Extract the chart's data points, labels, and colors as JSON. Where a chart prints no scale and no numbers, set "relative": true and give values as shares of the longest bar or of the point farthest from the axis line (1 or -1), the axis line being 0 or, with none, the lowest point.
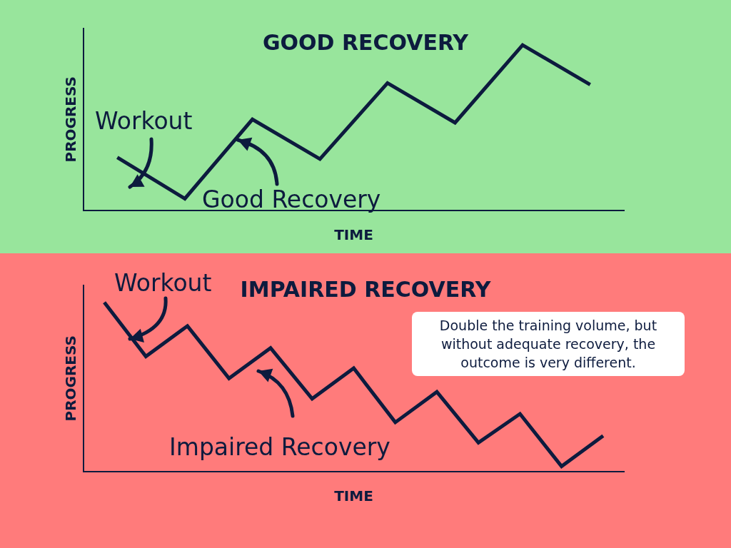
{
  "chart_data": [
    {
      "type": "line",
      "title": "GOOD RECOVERY",
      "xlabel": "TIME",
      "ylabel": "PROGRESS",
      "relative": true,
      "categories": [
        null,
        null,
        null,
        null,
        null,
        null,
        null,
        null
      ],
      "series": [
        {
          "color": "#0d1b3e",
          "values": [
            0.32,
            0.07,
            0.55,
            0.31,
            0.77,
            0.53,
            1,
            0.76
          ]
        }
      ],
      "marker": "none",
      "grid": false,
      "legend": false,
      "annotations": [
        "Workout",
        "Good Recovery"
      ]
    },
    {
      "type": "line",
      "title": "IMPAIRED RECOVERY",
      "xlabel": "TIME",
      "ylabel": "PROGRESS",
      "relative": true,
      "categories": [
        null,
        null,
        null,
        null,
        null,
        null,
        null,
        null,
        null,
        null,
        null,
        null,
        null
      ],
      "series": [
        {
          "color": "#0d1b3e",
          "values": [
            1,
            0.68,
            0.86,
            0.55,
            0.73,
            0.43,
            0.61,
            0.29,
            0.47,
            0.17,
            0.34,
            0.03,
            0.21
          ]
        }
      ],
      "marker": "none",
      "grid": false,
      "legend": false,
      "annotations": [
        "Workout",
        "Impaired Recovery",
        "Double the training volume, but without adequate recovery, the outcome is very different."
      ]
    }
  ]
}
